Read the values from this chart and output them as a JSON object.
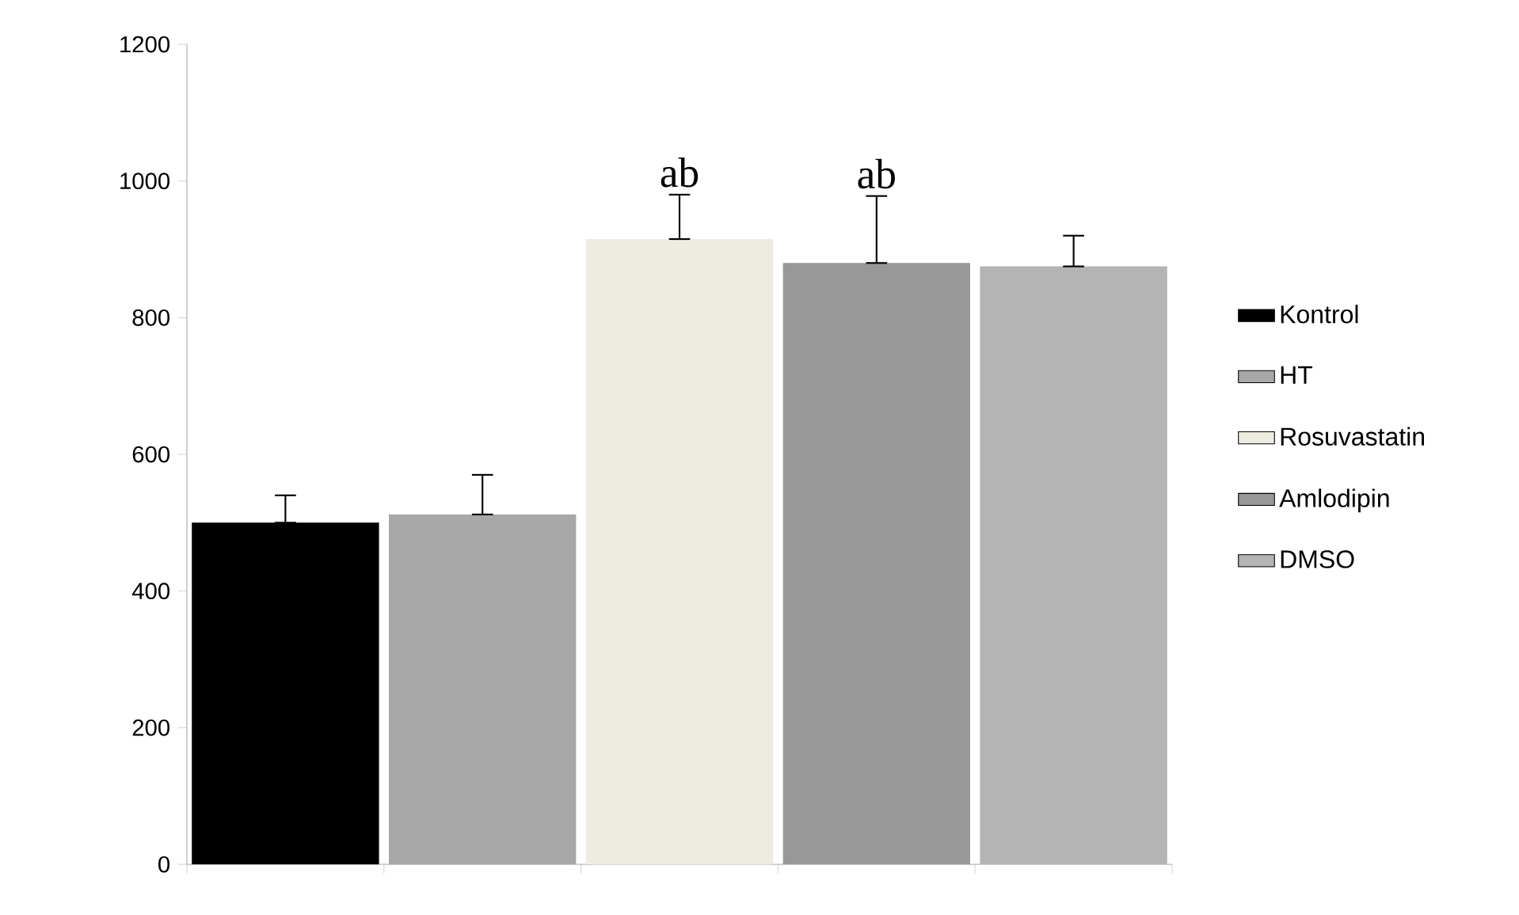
{
  "chart_data": {
    "type": "bar",
    "categories": [
      null,
      null,
      null,
      null,
      null
    ],
    "series": [
      {
        "name": "Kontrol",
        "color": "#000000",
        "values": [
          500,
          null,
          null,
          null,
          null
        ],
        "errors": [
          [
            500,
            540
          ],
          null,
          null,
          null,
          null
        ]
      },
      {
        "name": "HT",
        "color": "#a8a8a8",
        "values": [
          null,
          512,
          null,
          null,
          null
        ],
        "errors": [
          null,
          [
            512,
            570
          ],
          null,
          null,
          null
        ]
      },
      {
        "name": "Rosuvastatin",
        "color": "#eeece1",
        "values": [
          null,
          null,
          915,
          null,
          null
        ],
        "errors": [
          null,
          null,
          [
            915,
            980
          ],
          null,
          null
        ]
      },
      {
        "name": "Amlodipin",
        "color": "#989898",
        "values": [
          null,
          null,
          null,
          880,
          null
        ],
        "errors": [
          null,
          null,
          null,
          [
            880,
            978
          ],
          null
        ]
      },
      {
        "name": "DMSO",
        "color": "#b4b4b4",
        "values": [
          null,
          null,
          null,
          null,
          875
        ],
        "errors": [
          null,
          null,
          null,
          null,
          [
            875,
            920
          ]
        ]
      }
    ],
    "ylim": [
      0,
      1200
    ],
    "yticks": [
      0,
      200,
      400,
      600,
      800,
      1000,
      1200
    ],
    "grid": false,
    "legend": "right",
    "annotations": [
      "ab",
      "ab"
    ]
  }
}
